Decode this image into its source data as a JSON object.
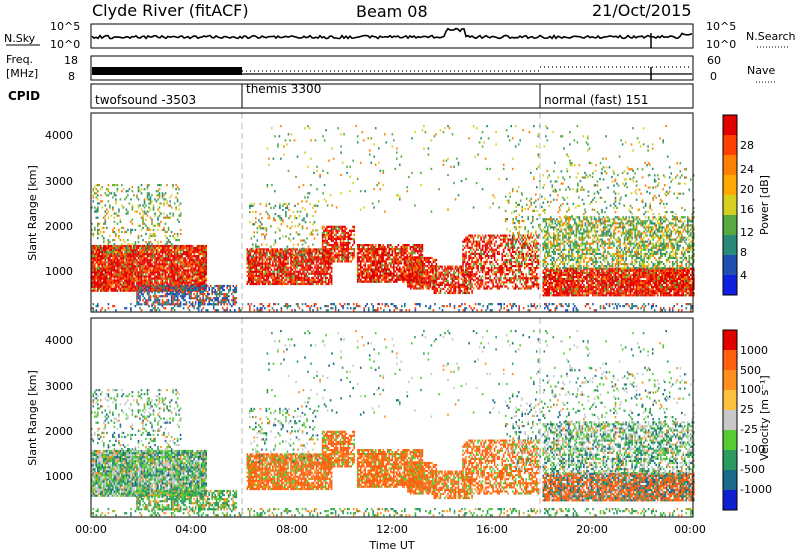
{
  "header": {
    "title": "Clyde River (fitACF)",
    "beam": "Beam 08",
    "date": "21/Oct/2015"
  },
  "noise_panel": {
    "left_label": "N.Sky",
    "right_label": "N.Search",
    "ticks": [
      "10^5",
      "10^0"
    ]
  },
  "freq_panel": {
    "left_label_line1": "Freq.",
    "left_label_line2": "[MHz]",
    "left_ticks": [
      "18",
      "8"
    ],
    "right_label": "Nave",
    "right_ticks": [
      "60",
      "0"
    ]
  },
  "cpid_panel": {
    "label": "CPID",
    "segments": [
      {
        "name": "twofsound -3503",
        "start_hour": 0
      },
      {
        "name": "themis 3300",
        "start_hour": 6
      },
      {
        "name": "normal (fast) 151",
        "start_hour": 18
      }
    ]
  },
  "chart_data": [
    {
      "type": "heatmap",
      "quantity": "power",
      "ylabel": "Slant Range [km]",
      "xlabel": "Time UT",
      "xlim_hours": [
        0,
        24
      ],
      "ylim_km": [
        200,
        4600
      ],
      "y_ticks": [
        "1000",
        "2000",
        "3000",
        "4000"
      ],
      "x_ticks": [
        "00:00",
        "04:00",
        "08:00",
        "12:00",
        "16:00",
        "20:00",
        "00:00"
      ],
      "colorbar": {
        "label": "Power [dB]",
        "ticks": [
          "4",
          "8",
          "12",
          "16",
          "20",
          "24",
          "28"
        ],
        "colors": [
          "#1020e0",
          "#2050b0",
          "#2a8a7a",
          "#55aa40",
          "#d8d020",
          "#ffaa00",
          "#ff8000",
          "#ff4000",
          "#e00000"
        ]
      }
    },
    {
      "type": "heatmap",
      "quantity": "velocity",
      "ylabel": "Slant Range [km]",
      "xlabel": "Time UT",
      "xlim_hours": [
        0,
        24
      ],
      "ylim_km": [
        200,
        4600
      ],
      "y_ticks": [
        "1000",
        "2000",
        "3000",
        "4000"
      ],
      "x_ticks": [
        "00:00",
        "04:00",
        "08:00",
        "12:00",
        "16:00",
        "20:00",
        "00:00"
      ],
      "colorbar": {
        "label": "Velocity [m s⁻¹]",
        "ticks": [
          "1000",
          "500",
          "100",
          "25",
          "-25",
          "-100",
          "-500",
          "-1000"
        ],
        "colors": [
          "#1020d0",
          "#1a6a8a",
          "#2a9a60",
          "#55cc33",
          "#c8c8c8",
          "#ffc040",
          "#ff9020",
          "#ff6010",
          "#e00000"
        ]
      }
    }
  ]
}
